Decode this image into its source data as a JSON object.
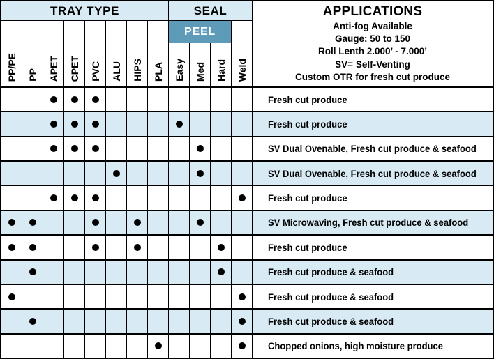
{
  "colors": {
    "light_blue": "#d8eaf3",
    "teal": "#5e9bb8",
    "grid_line": "#000000",
    "row_base": "#ffffff"
  },
  "header": {
    "tray_type": "TRAY TYPE",
    "seal": "SEAL",
    "peel": "PEEL",
    "applications_title": "APPLICATIONS",
    "applications_lines": [
      "Anti-fog Available",
      "Gauge: 50 to 150",
      "Roll Lenth 2.000’ - 7.000’",
      "SV= Self-Venting",
      "Custom OTR for fresh cut produce"
    ]
  },
  "columns": [
    "PP/PE",
    "PP",
    "APET",
    "CPET",
    "PVC",
    "ALU",
    "HIPS",
    "PLA",
    "Easy",
    "Med",
    "Hard",
    "Weld"
  ],
  "column_groups": {
    "tray": [
      "PP/PE",
      "PP",
      "APET",
      "CPET",
      "PVC",
      "ALU",
      "HIPS",
      "PLA"
    ],
    "peel": [
      "Easy",
      "Med",
      "Hard"
    ],
    "weld": [
      "Weld"
    ]
  },
  "rows": [
    {
      "dots": [
        "APET",
        "CPET",
        "PVC"
      ],
      "application": "Fresh cut produce"
    },
    {
      "dots": [
        "APET",
        "CPET",
        "PVC",
        "Easy"
      ],
      "application": "Fresh cut produce"
    },
    {
      "dots": [
        "APET",
        "CPET",
        "PVC",
        "Med"
      ],
      "application": "SV Dual Ovenable, Fresh cut produce & seafood"
    },
    {
      "dots": [
        "ALU",
        "Med"
      ],
      "application": "SV Dual Ovenable, Fresh cut produce & seafood"
    },
    {
      "dots": [
        "APET",
        "CPET",
        "PVC",
        "Weld"
      ],
      "application": "Fresh cut produce"
    },
    {
      "dots": [
        "PP/PE",
        "PP",
        "PVC",
        "HIPS",
        "Med"
      ],
      "application": "SV Microwaving, Fresh cut produce & seafood"
    },
    {
      "dots": [
        "PP/PE",
        "PP",
        "PVC",
        "HIPS",
        "Hard"
      ],
      "application": "Fresh cut produce"
    },
    {
      "dots": [
        "PP",
        "Hard"
      ],
      "application": "Fresh cut produce & seafood"
    },
    {
      "dots": [
        "PP/PE",
        "Weld"
      ],
      "application": "Fresh cut produce & seafood"
    },
    {
      "dots": [
        "PP",
        "Weld"
      ],
      "application": "Fresh cut produce & seafood"
    },
    {
      "dots": [
        "PLA",
        "Weld"
      ],
      "application": "Chopped onions, high moisture produce"
    }
  ]
}
